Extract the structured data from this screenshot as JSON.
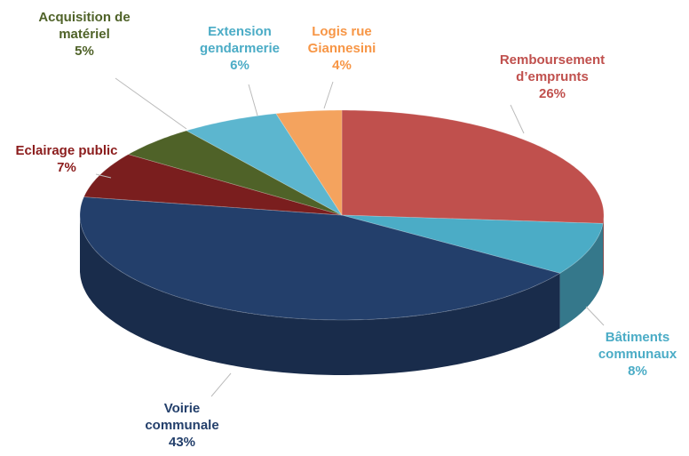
{
  "chart_data": {
    "type": "pie3d",
    "categories": [
      "Remboursement d’emprunts",
      "Bâtiments communaux",
      "Voirie communale",
      "Eclairage public",
      "Acquisition de matériel",
      "Extension gendarmerie",
      "Logis rue Giannesini"
    ],
    "values": [
      26,
      8,
      43,
      7,
      5,
      6,
      4
    ],
    "value_labels": [
      "26%",
      "8%",
      "43%",
      "7%",
      "5%",
      "6%",
      "4%"
    ],
    "colors": [
      "#c0504d",
      "#4bacc6",
      "#233f6b",
      "#7a1e1e",
      "#4f6228",
      "#5cb6cf",
      "#f4a35e"
    ],
    "label_colors": [
      "#c0504d",
      "#4bacc6",
      "#233f6b",
      "#8b1c1c",
      "#4f6228",
      "#4bacc6",
      "#f79646"
    ]
  }
}
